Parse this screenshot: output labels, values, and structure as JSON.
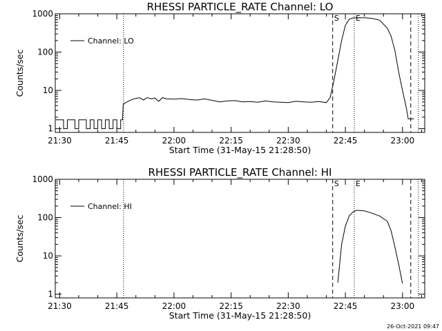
{
  "footer": {
    "timestamp": "26-Oct-2021 09:47"
  },
  "chart_data": [
    {
      "type": "line",
      "title": "RHESSI PARTICLE_RATE Channel: LO",
      "xlabel": "Start Time (31-May-15 21:28:50)",
      "ylabel": "Counts/sec",
      "yscale": "log",
      "xlim": [
        "21:28:50",
        "23:05:50"
      ],
      "ylim": [
        0.8,
        1000
      ],
      "x_ticks": [
        "21:30",
        "21:45",
        "22:00",
        "22:15",
        "22:30",
        "22:45",
        "23:00"
      ],
      "y_ticks": [
        "1",
        "10",
        "100",
        "1000"
      ],
      "legend": {
        "position": "top-left",
        "label": "Channel: LO"
      },
      "grid": false,
      "markers": [
        {
          "label": "",
          "time": "21:46:45",
          "style": "dotted"
        },
        {
          "label": "S",
          "time": "22:41:40",
          "style": "dashed"
        },
        {
          "label": "E",
          "time": "22:47:20",
          "style": "dotted"
        },
        {
          "label": "",
          "time": "23:02:10",
          "style": "dashed"
        },
        {
          "label": "",
          "time": "23:04:10",
          "style": "dotted"
        }
      ],
      "series": [
        {
          "name": "Channel: LO",
          "x": [
            "21:29:00",
            "21:31:00",
            "21:31:00",
            "21:32:00",
            "21:32:00",
            "21:34:00",
            "21:34:00",
            "21:35:00",
            "21:35:00",
            "21:37:00",
            "21:37:00",
            "21:38:00",
            "21:38:00",
            "21:39:00",
            "21:39:00",
            "21:40:00",
            "21:40:00",
            "21:41:00",
            "21:41:00",
            "21:42:00",
            "21:42:00",
            "21:43:00",
            "21:43:00",
            "21:44:00",
            "21:44:00",
            "21:45:00",
            "21:45:00",
            "21:46:00",
            "21:46:00",
            "21:46:30",
            "21:46:40",
            "21:47:00",
            "21:48:00",
            "21:49:00",
            "21:50:00",
            "21:51:00",
            "21:52:00",
            "21:53:00",
            "21:54:00",
            "21:55:00",
            "21:56:00",
            "21:57:00",
            "21:58:00",
            "22:00:00",
            "22:02:00",
            "22:04:00",
            "22:06:00",
            "22:08:00",
            "22:10:00",
            "22:12:00",
            "22:14:00",
            "22:16:00",
            "22:18:00",
            "22:20:00",
            "22:22:00",
            "22:24:00",
            "22:26:00",
            "22:28:00",
            "22:30:00",
            "22:32:00",
            "22:34:00",
            "22:36:00",
            "22:38:00",
            "22:40:00",
            "22:41:00",
            "22:42:00",
            "22:43:00",
            "22:44:00",
            "22:45:00",
            "22:46:00",
            "22:47:00",
            "22:48:00",
            "22:50:00",
            "22:52:00",
            "22:54:00",
            "22:56:00",
            "22:57:00",
            "22:58:00",
            "22:59:00",
            "23:00:00",
            "23:01:00",
            "23:01:30",
            "23:03:00"
          ],
          "values": [
            1.7,
            1.7,
            1.0,
            1.0,
            1.7,
            1.7,
            1.0,
            1.0,
            1.7,
            1.7,
            1.0,
            1.0,
            1.7,
            1.7,
            1.0,
            1.0,
            1.7,
            1.7,
            1.0,
            1.0,
            1.7,
            1.7,
            1.0,
            1.0,
            1.7,
            1.7,
            1.0,
            1.0,
            1.7,
            1.7,
            4.2,
            4.6,
            5.2,
            5.8,
            6.2,
            6.4,
            5.6,
            6.5,
            6.0,
            6.3,
            5.2,
            6.5,
            6.0,
            5.9,
            6.1,
            5.8,
            5.6,
            6.0,
            5.5,
            5.0,
            5.3,
            5.4,
            5.0,
            5.1,
            4.9,
            5.3,
            5.0,
            4.9,
            4.8,
            5.2,
            5.0,
            4.9,
            5.1,
            4.8,
            6.5,
            18,
            60,
            200,
            500,
            720,
            780,
            790,
            790,
            760,
            680,
            420,
            260,
            110,
            30,
            10,
            3.5,
            1.8,
            1.8
          ]
        }
      ]
    },
    {
      "type": "line",
      "title": "RHESSI PARTICLE_RATE Channel: HI",
      "xlabel": "Start Time (31-May-15 21:28:50)",
      "ylabel": "Counts/sec",
      "yscale": "log",
      "xlim": [
        "21:28:50",
        "23:05:50"
      ],
      "ylim": [
        0.8,
        1000
      ],
      "x_ticks": [
        "21:30",
        "21:45",
        "22:00",
        "22:15",
        "22:30",
        "22:45",
        "23:00"
      ],
      "y_ticks": [
        "1",
        "10",
        "100",
        "1000"
      ],
      "legend": {
        "position": "top-left",
        "label": "Channel: HI"
      },
      "grid": false,
      "markers": [
        {
          "label": "",
          "time": "21:46:45",
          "style": "dotted"
        },
        {
          "label": "S",
          "time": "22:41:40",
          "style": "dashed"
        },
        {
          "label": "E",
          "time": "22:47:20",
          "style": "dotted"
        },
        {
          "label": "",
          "time": "23:02:10",
          "style": "dashed"
        },
        {
          "label": "",
          "time": "23:04:10",
          "style": "dotted"
        }
      ],
      "series": [
        {
          "name": "Channel: HI",
          "x": [
            "22:43:00",
            "22:43:30",
            "22:44:00",
            "22:45:00",
            "22:46:00",
            "22:47:00",
            "22:48:00",
            "22:50:00",
            "22:52:00",
            "22:54:00",
            "22:56:00",
            "22:57:00",
            "22:58:00",
            "22:59:00",
            "23:00:00"
          ],
          "values": [
            2.0,
            6,
            20,
            60,
            110,
            140,
            155,
            150,
            130,
            110,
            80,
            45,
            17,
            6,
            1.9
          ]
        }
      ]
    }
  ]
}
